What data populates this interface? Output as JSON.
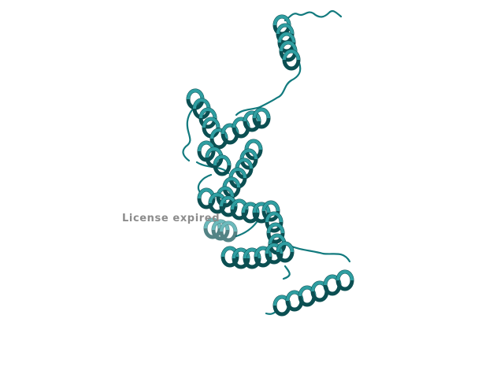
{
  "scene": {
    "subject": "protein-cartoon",
    "colors": {
      "background": "#ffffff",
      "ribbon_dark": "#0b4f52",
      "ribbon": "#127a7e",
      "ribbon_light": "#2f9ea1",
      "ribbon_pale": "#5fb3b5"
    }
  },
  "watermark": {
    "text": "License expired"
  }
}
